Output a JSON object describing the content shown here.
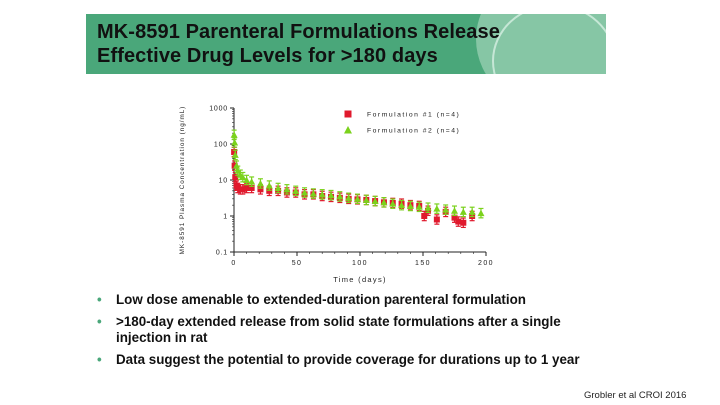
{
  "slide": {
    "title_line1": "MK-8591 Parenteral Formulations Release",
    "title_line2": "Effective Drug Levels for >180 days",
    "citation": "Grobler et al CROI 2016"
  },
  "bullets": [
    {
      "marker": "•",
      "text": "Low dose amenable to extended-duration parenteral formulation"
    },
    {
      "marker": "•",
      "text": ">180-day extended release from solid state formulations after a single injection in rat"
    },
    {
      "marker": "•",
      "text": "Data suggest the potential to provide coverage for durations up to 1 year"
    }
  ],
  "chart_data": {
    "type": "scatter",
    "xlabel": "Time (days)",
    "ylabel": "MK-8591 Plasma Concentration (ng/mL)",
    "xlim": [
      0,
      200
    ],
    "ylim": [
      0.1,
      1000
    ],
    "yscale": "log",
    "xticks": [
      0,
      50,
      100,
      150,
      200
    ],
    "yticks": [
      0.1,
      1,
      10,
      100,
      1000
    ],
    "xtick_labels": [
      "0",
      "50",
      "100",
      "150",
      "200"
    ],
    "ytick_labels": [
      "0.1",
      "1",
      "10",
      "100",
      "1000"
    ],
    "legend_position": "top-right",
    "series": [
      {
        "name": "Formulation #1 (n=4)",
        "color": "#e0192d",
        "marker": "square",
        "x": [
          0.1,
          0.5,
          1,
          2,
          3,
          5,
          7,
          10,
          14,
          21,
          28,
          35,
          42,
          49,
          56,
          63,
          70,
          77,
          84,
          91,
          98,
          105,
          112,
          119,
          126,
          133,
          140,
          147,
          151,
          154,
          161,
          168,
          175,
          178,
          182,
          189
        ],
        "y": [
          60,
          25,
          12,
          7,
          6,
          5.5,
          5.5,
          6,
          6,
          5.5,
          5,
          5,
          4.5,
          4.5,
          4,
          4,
          3.6,
          3.4,
          3.2,
          3,
          2.9,
          2.8,
          2.6,
          2.4,
          2.3,
          2.2,
          2.0,
          1.9,
          1.0,
          1.4,
          0.8,
          1.3,
          0.9,
          0.7,
          0.65,
          1.0
        ]
      },
      {
        "name": "Formulation #2 (n=4)",
        "color": "#7bd21c",
        "marker": "triangle",
        "x": [
          0.1,
          0.5,
          1,
          2,
          3,
          5,
          7,
          10,
          14,
          21,
          28,
          35,
          42,
          49,
          56,
          63,
          70,
          77,
          84,
          91,
          98,
          105,
          112,
          119,
          126,
          133,
          140,
          147,
          154,
          161,
          168,
          175,
          182,
          189,
          196
        ],
        "y": [
          180,
          110,
          50,
          25,
          18,
          14,
          12,
          10,
          9,
          8,
          7,
          6,
          5.5,
          5,
          4.5,
          4.2,
          4.0,
          3.8,
          3.5,
          3.2,
          3.0,
          2.8,
          2.6,
          2.4,
          2.2,
          2.0,
          1.9,
          1.8,
          1.7,
          1.6,
          1.5,
          1.4,
          1.3,
          1.3,
          1.2
        ]
      }
    ]
  }
}
